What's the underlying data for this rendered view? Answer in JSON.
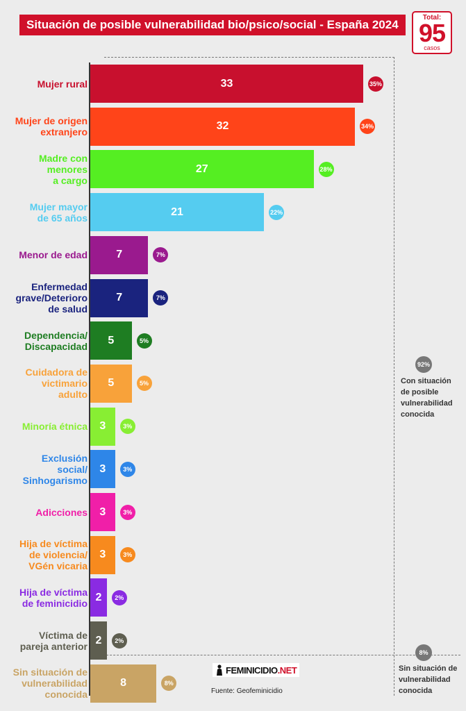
{
  "title": "Situación de posible vulnerabilidad bio/psico/social - España 2024",
  "total": {
    "label": "Total:",
    "value": "95",
    "unit": "casos"
  },
  "chart_data": {
    "type": "bar",
    "orientation": "horizontal",
    "title": "Situación de posible vulnerabilidad bio/psico/social - España 2024",
    "categories": [
      [
        "Mujer rural"
      ],
      [
        "Mujer de origen",
        "extranjero"
      ],
      [
        "Madre con",
        "menores",
        "a cargo"
      ],
      [
        "Mujer mayor",
        "de 65 años"
      ],
      [
        "Menor de edad"
      ],
      [
        "Enfermedad",
        "grave/Deterioro",
        "de salud"
      ],
      [
        "Dependencia/",
        "Discapacidad"
      ],
      [
        "Cuidadora de",
        "victimario",
        "adulto"
      ],
      [
        "Minoría étnica"
      ],
      [
        "Exclusión",
        "social/",
        "Sinhogarismo"
      ],
      [
        "Adicciones"
      ],
      [
        "Hija de víctima",
        "de violencia/",
        "VGén vicaria"
      ],
      [
        "Hija de víctima",
        "de feminicidio"
      ],
      [
        "Víctima de",
        "pareja anterior"
      ],
      [
        "Sin situación de",
        "vulnerabilidad",
        "conocida"
      ]
    ],
    "values": [
      33,
      32,
      27,
      21,
      7,
      7,
      5,
      5,
      3,
      3,
      3,
      3,
      2,
      2,
      8
    ],
    "percent_labels": [
      "35%",
      "34%",
      "28%",
      "22%",
      "7%",
      "7%",
      "5%",
      "5%",
      "3%",
      "3%",
      "3%",
      "3%",
      "2%",
      "2%",
      "8%"
    ],
    "colors": [
      "#c8102e",
      "#ff4419",
      "#55ee22",
      "#55ccf0",
      "#9a1a8e",
      "#1a237e",
      "#1e7d22",
      "#f8a23a",
      "#88ee33",
      "#2e86e8",
      "#f01fa8",
      "#f78a1e",
      "#8a2be2",
      "#5e5e50",
      "#c9a465"
    ],
    "xlim": [
      0,
      35
    ]
  },
  "groups": {
    "known": {
      "pct": "92%",
      "label": [
        "Con situación",
        "de posible",
        "vulnerabilidad",
        "conocida"
      ]
    },
    "unknown": {
      "pct": "8%",
      "label": [
        "Sin situación de",
        "vulnerabilidad",
        "conocida"
      ]
    }
  },
  "logo": {
    "main": "FEMINICIDIO",
    "suffix": ".NET"
  },
  "source": "Fuente: Geofeminicidio"
}
